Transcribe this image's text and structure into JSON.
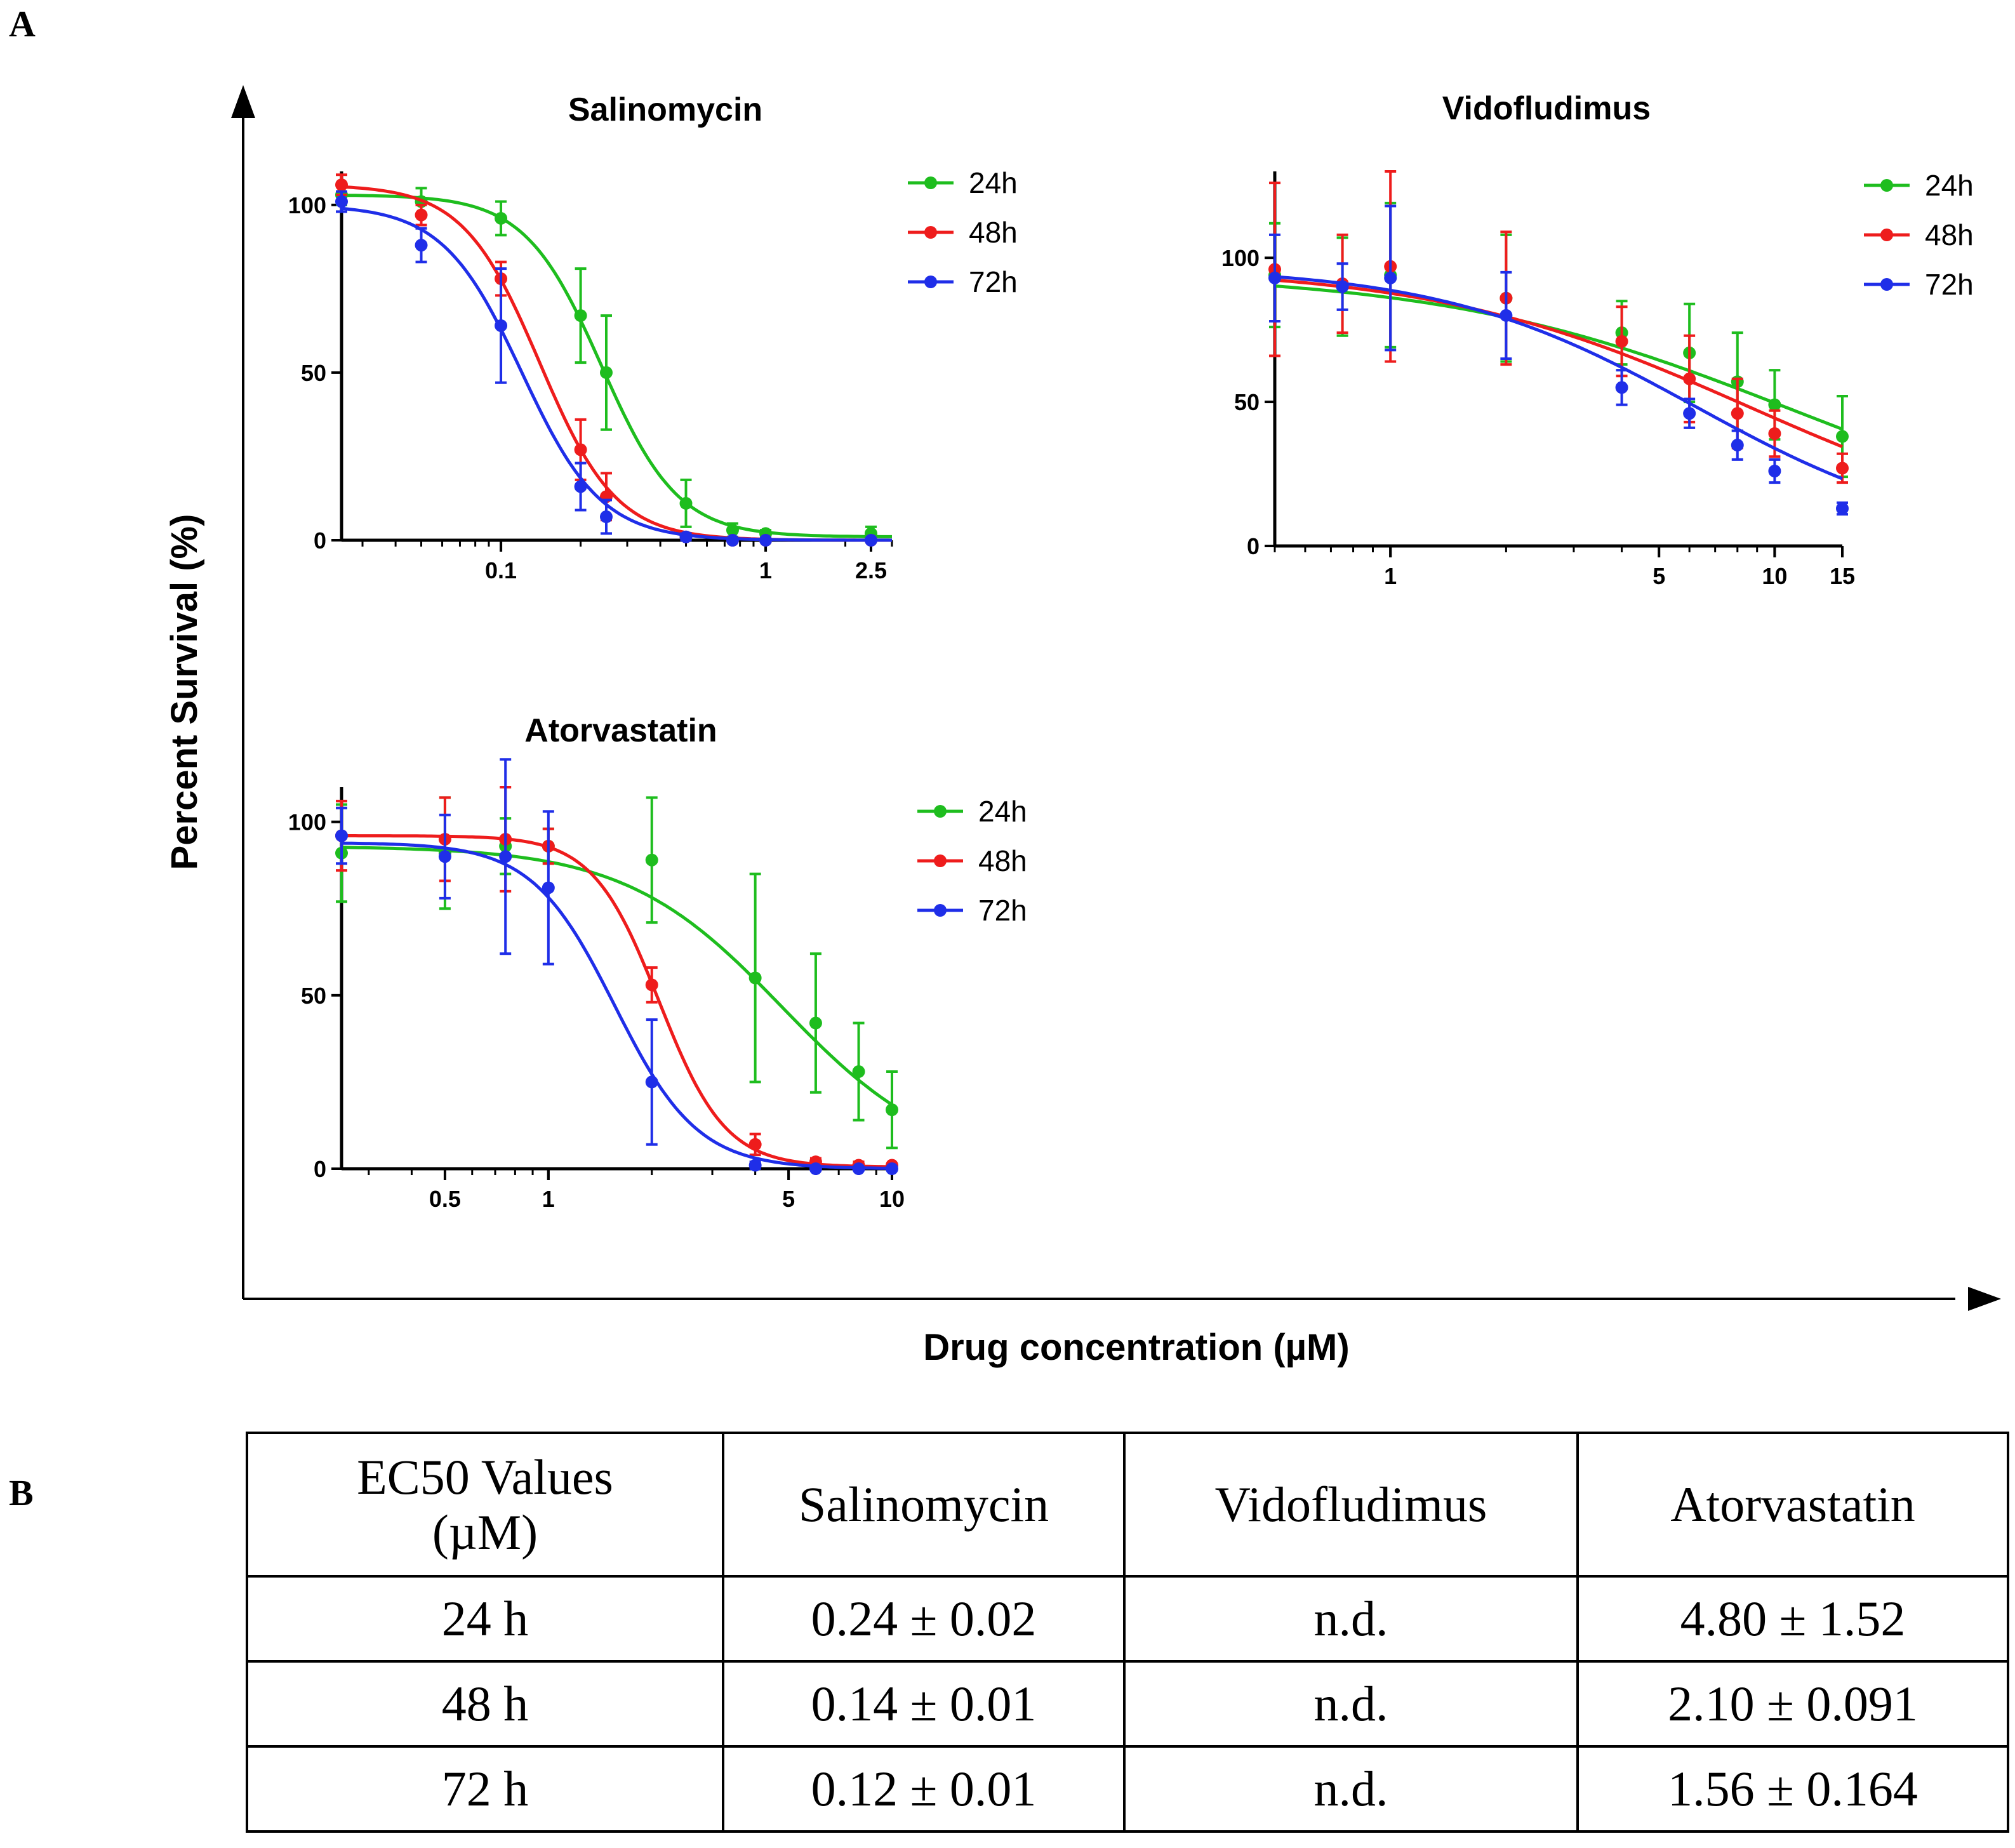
{
  "panel_labels": {
    "a": "A",
    "b": "B"
  },
  "figure": {
    "shared_ylabel": "Percent Survival (%)",
    "shared_xlabel": "Drug concentration (µM)"
  },
  "colors": {
    "24h": "#1ebd1e",
    "48h": "#ee1c1c",
    "72h": "#1f2ee8",
    "axis": "#000000"
  },
  "chart_data": [
    {
      "type": "line",
      "title": "Salinomycin",
      "xscale": "log",
      "xlim": [
        0.025,
        3.0
      ],
      "ylim": [
        0,
        110
      ],
      "xticks": [
        0.1,
        1,
        2.5
      ],
      "xtick_labels": [
        "0.1",
        "1",
        "2.5"
      ],
      "yticks": [
        0,
        50,
        100
      ],
      "ytick_labels": [
        "0",
        "50",
        "100"
      ],
      "legend": [
        "24h",
        "48h",
        "72h"
      ],
      "legend_position": "top-right",
      "series": [
        {
          "name": "24h",
          "x": [
            0.025,
            0.05,
            0.1,
            0.2,
            0.25,
            0.5,
            0.75,
            1,
            2.5
          ],
          "y": [
            103,
            101,
            96,
            67,
            50,
            11,
            3,
            2,
            2
          ],
          "err": [
            3,
            4,
            5,
            14,
            17,
            7,
            2,
            1,
            2
          ],
          "fit": {
            "top": 103,
            "bottom": 1,
            "ec50": 0.24,
            "hill": 3.0
          }
        },
        {
          "name": "48h",
          "x": [
            0.025,
            0.05,
            0.1,
            0.2,
            0.25,
            0.5,
            0.75,
            1,
            2.5
          ],
          "y": [
            106,
            97,
            78,
            27,
            13,
            1,
            0,
            0,
            0
          ],
          "err": [
            3,
            3,
            5,
            9,
            7,
            1,
            0.5,
            0.5,
            0.5
          ],
          "fit": {
            "top": 106,
            "bottom": 0,
            "ec50": 0.14,
            "hill": 3.0
          }
        },
        {
          "name": "72h",
          "x": [
            0.025,
            0.05,
            0.1,
            0.2,
            0.25,
            0.5,
            0.75,
            1,
            2.5
          ],
          "y": [
            101,
            88,
            64,
            16,
            7,
            1,
            0,
            0,
            0
          ],
          "err": [
            3,
            5,
            17,
            7,
            5,
            1,
            0.5,
            0.5,
            0.5
          ],
          "fit": {
            "top": 100,
            "bottom": 0,
            "ec50": 0.12,
            "hill": 2.9
          }
        }
      ]
    },
    {
      "type": "line",
      "title": "Vidofludimus",
      "xscale": "log",
      "xlim": [
        0.5,
        15
      ],
      "ylim": [
        0,
        130
      ],
      "xticks": [
        1,
        5,
        10,
        15
      ],
      "xtick_labels": [
        "1",
        "5",
        "10",
        "15"
      ],
      "yticks": [
        0,
        50,
        100
      ],
      "ytick_labels": [
        "0",
        "50",
        "100"
      ],
      "legend": [
        "24h",
        "48h",
        "72h"
      ],
      "legend_position": "top-right",
      "series": [
        {
          "name": "24h",
          "x": [
            0.5,
            0.75,
            1,
            2,
            4,
            6,
            8,
            10,
            15
          ],
          "y": [
            94,
            90,
            94,
            86,
            74,
            67,
            57,
            49,
            38
          ],
          "err": [
            18,
            17,
            25,
            22,
            11,
            17,
            17,
            12,
            14
          ],
          "fit": {
            "top": 95,
            "bottom": 0,
            "ec50": 11.0,
            "hill": 0.95
          }
        },
        {
          "name": "48h",
          "x": [
            0.5,
            0.75,
            1,
            2,
            4,
            6,
            8,
            10,
            15
          ],
          "y": [
            96,
            91,
            97,
            86,
            71,
            58,
            46,
            39,
            27
          ],
          "err": [
            30,
            17,
            33,
            23,
            12,
            15,
            12,
            8,
            5
          ],
          "fit": {
            "top": 97,
            "bottom": 0,
            "ec50": 8.5,
            "hill": 1.05
          }
        },
        {
          "name": "72h",
          "x": [
            0.5,
            0.75,
            1,
            2,
            4,
            6,
            8,
            10,
            15
          ],
          "y": [
            93,
            90,
            93,
            80,
            55,
            46,
            35,
            26,
            13
          ],
          "err": [
            15,
            8,
            25,
            15,
            6,
            5,
            5,
            4,
            2
          ],
          "fit": {
            "top": 97,
            "bottom": 0,
            "ec50": 6.2,
            "hill": 1.3
          }
        }
      ]
    },
    {
      "type": "line",
      "title": "Atorvastatin",
      "xscale": "log",
      "xlim": [
        0.25,
        10
      ],
      "ylim": [
        0,
        110
      ],
      "xticks": [
        0.5,
        1,
        5,
        10
      ],
      "xtick_labels": [
        "0.5",
        "1",
        "5",
        "10"
      ],
      "yticks": [
        0,
        50,
        100
      ],
      "ytick_labels": [
        "0",
        "50",
        "100"
      ],
      "legend": [
        "24h",
        "48h",
        "72h"
      ],
      "legend_position": "top-right",
      "series": [
        {
          "name": "24h",
          "x": [
            0.25,
            0.5,
            0.75,
            1,
            2,
            4,
            6,
            8,
            10
          ],
          "y": [
            91,
            91,
            93,
            93,
            89,
            55,
            42,
            28,
            17
          ],
          "err": [
            14,
            16,
            8,
            5,
            18,
            30,
            20,
            14,
            11
          ],
          "fit": {
            "top": 93,
            "bottom": 0,
            "ec50": 4.8,
            "hill": 1.9
          }
        },
        {
          "name": "48h",
          "x": [
            0.25,
            0.5,
            0.75,
            1,
            2,
            4,
            6,
            8,
            10
          ],
          "y": [
            96,
            95,
            95,
            93,
            53,
            7,
            2,
            1,
            1
          ],
          "err": [
            10,
            12,
            15,
            5,
            5,
            3,
            1,
            1,
            0.5
          ],
          "fit": {
            "top": 96,
            "bottom": 0.5,
            "ec50": 2.1,
            "hill": 4.5
          }
        },
        {
          "name": "72h",
          "x": [
            0.25,
            0.5,
            0.75,
            1,
            2,
            4,
            6,
            8,
            10
          ],
          "y": [
            96,
            90,
            90,
            81,
            25,
            1,
            0,
            0,
            0
          ],
          "err": [
            8,
            12,
            28,
            22,
            18,
            1,
            0.5,
            0.5,
            0.5
          ],
          "fit": {
            "top": 94,
            "bottom": 0,
            "ec50": 1.56,
            "hill": 3.6
          }
        }
      ]
    },
    {
      "type": "table",
      "header": {
        "line1": "EC50 Values",
        "line2": "(µM)",
        "cols": [
          "Salinomycin",
          "Vidofludimus",
          "Atorvastatin"
        ]
      },
      "rows": [
        {
          "label": "24 h",
          "values": [
            "0.24 ± 0.02",
            "n.d.",
            "4.80 ± 1.52"
          ]
        },
        {
          "label": "48 h",
          "values": [
            "0.14 ± 0.01",
            "n.d.",
            "2.10 ± 0.091"
          ]
        },
        {
          "label": "72 h",
          "values": [
            "0.12 ± 0.01",
            "n.d.",
            "1.56 ± 0.164"
          ]
        }
      ]
    }
  ]
}
